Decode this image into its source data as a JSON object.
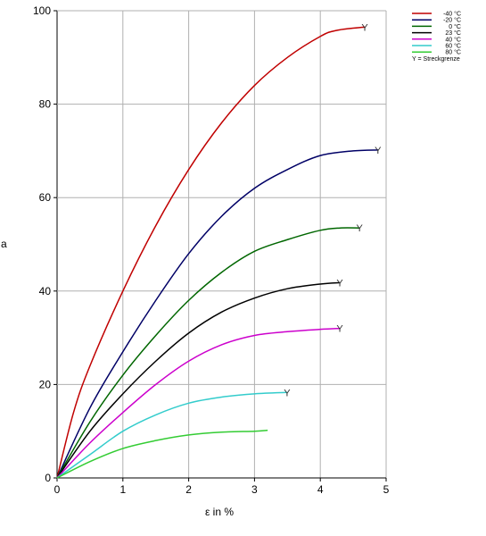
{
  "chart_data": {
    "type": "line",
    "xlabel": "ε in %",
    "ylabel": "a",
    "xlim": [
      0,
      5
    ],
    "ylim": [
      0,
      100
    ],
    "x_ticks": [
      0,
      1,
      2,
      3,
      4,
      5
    ],
    "y_ticks": [
      0,
      20,
      40,
      60,
      80,
      100
    ],
    "grid": true,
    "legend_position": "top-right",
    "yield_marker": "Y",
    "legend_note": "Y = Streckgrenze",
    "series": [
      {
        "name": "-40  °C",
        "color": "#c00000",
        "x": [
          0,
          0.25,
          0.5,
          1.0,
          1.5,
          2.0,
          2.5,
          3.0,
          3.5,
          4.0,
          4.25,
          4.68
        ],
        "y": [
          0,
          14,
          24,
          40,
          54,
          66,
          76,
          84,
          90,
          94.5,
          95.8,
          96.5
        ]
      },
      {
        "name": "-20  °C",
        "color": "#000066",
        "x": [
          0,
          0.5,
          1.0,
          1.5,
          2.0,
          2.5,
          3.0,
          3.5,
          4.0,
          4.5,
          4.88
        ],
        "y": [
          0,
          15,
          27,
          38,
          48,
          56,
          62,
          66,
          69,
          70,
          70.2
        ]
      },
      {
        "name": "0  °C",
        "color": "#006600",
        "x": [
          0,
          0.5,
          1.0,
          1.5,
          2.0,
          2.5,
          3.0,
          3.5,
          4.0,
          4.3,
          4.6
        ],
        "y": [
          0,
          12,
          22,
          30.5,
          38,
          44,
          48.5,
          51,
          53,
          53.5,
          53.5
        ]
      },
      {
        "name": "23  °C",
        "color": "#000000",
        "x": [
          0,
          0.5,
          1.0,
          1.5,
          2.0,
          2.5,
          3.0,
          3.5,
          4.0,
          4.3
        ],
        "y": [
          0,
          10,
          18,
          25,
          31,
          35.5,
          38.5,
          40.5,
          41.5,
          41.8
        ]
      },
      {
        "name": "40  °C",
        "color": "#cc00cc",
        "x": [
          0,
          0.5,
          1.0,
          1.5,
          2.0,
          2.5,
          3.0,
          3.5,
          4.0,
          4.3
        ],
        "y": [
          0,
          7.5,
          14,
          20,
          25,
          28.5,
          30.5,
          31.3,
          31.8,
          32
        ]
      },
      {
        "name": "60  °C",
        "color": "#33cccc",
        "x": [
          0,
          0.5,
          1.0,
          1.5,
          2.0,
          2.5,
          3.0,
          3.5
        ],
        "y": [
          0,
          5,
          10,
          13.5,
          16,
          17.3,
          18,
          18.3
        ]
      },
      {
        "name": "80  °C",
        "color": "#33cc33",
        "x": [
          0,
          0.5,
          1.0,
          1.5,
          2.0,
          2.5,
          3.0,
          3.2
        ],
        "y": [
          0,
          3.5,
          6.3,
          8,
          9.2,
          9.8,
          10,
          10.2
        ]
      }
    ]
  }
}
